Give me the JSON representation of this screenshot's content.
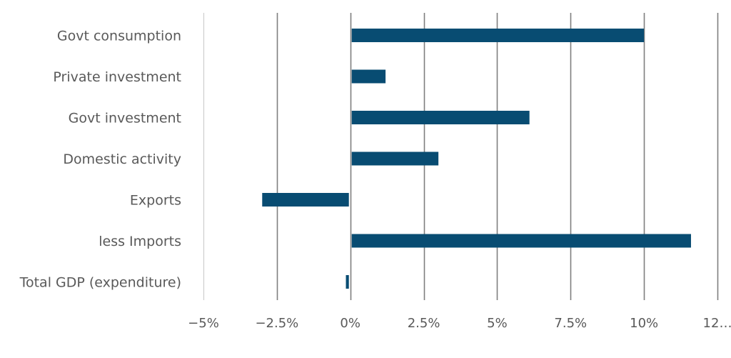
{
  "chart_data": {
    "type": "bar",
    "orientation": "horizontal",
    "categories": [
      "Govt consumption",
      "Private investment",
      "Govt investment",
      "Domestic activity",
      "Exports",
      "less Imports",
      "Total GDP (expenditure)"
    ],
    "values": [
      10.0,
      1.2,
      6.1,
      3.0,
      -3.0,
      11.6,
      -0.15
    ],
    "xticks": [
      -5,
      -2.5,
      0,
      2.5,
      5,
      7.5,
      10,
      12.5
    ],
    "xtick_labels": [
      "−5%",
      "−2.5%",
      "0%",
      "2.5%",
      "5%",
      "7.5%",
      "10%",
      "12…"
    ],
    "xlim": [
      -5,
      12.5
    ],
    "grid": "vertical",
    "legend": "none",
    "title": "",
    "xlabel": "",
    "ylabel": "",
    "colors": {
      "bar": "#084C72",
      "grid": "#7f7f7f",
      "edge_grid": "#c8c8c8",
      "text": "#595959"
    }
  }
}
